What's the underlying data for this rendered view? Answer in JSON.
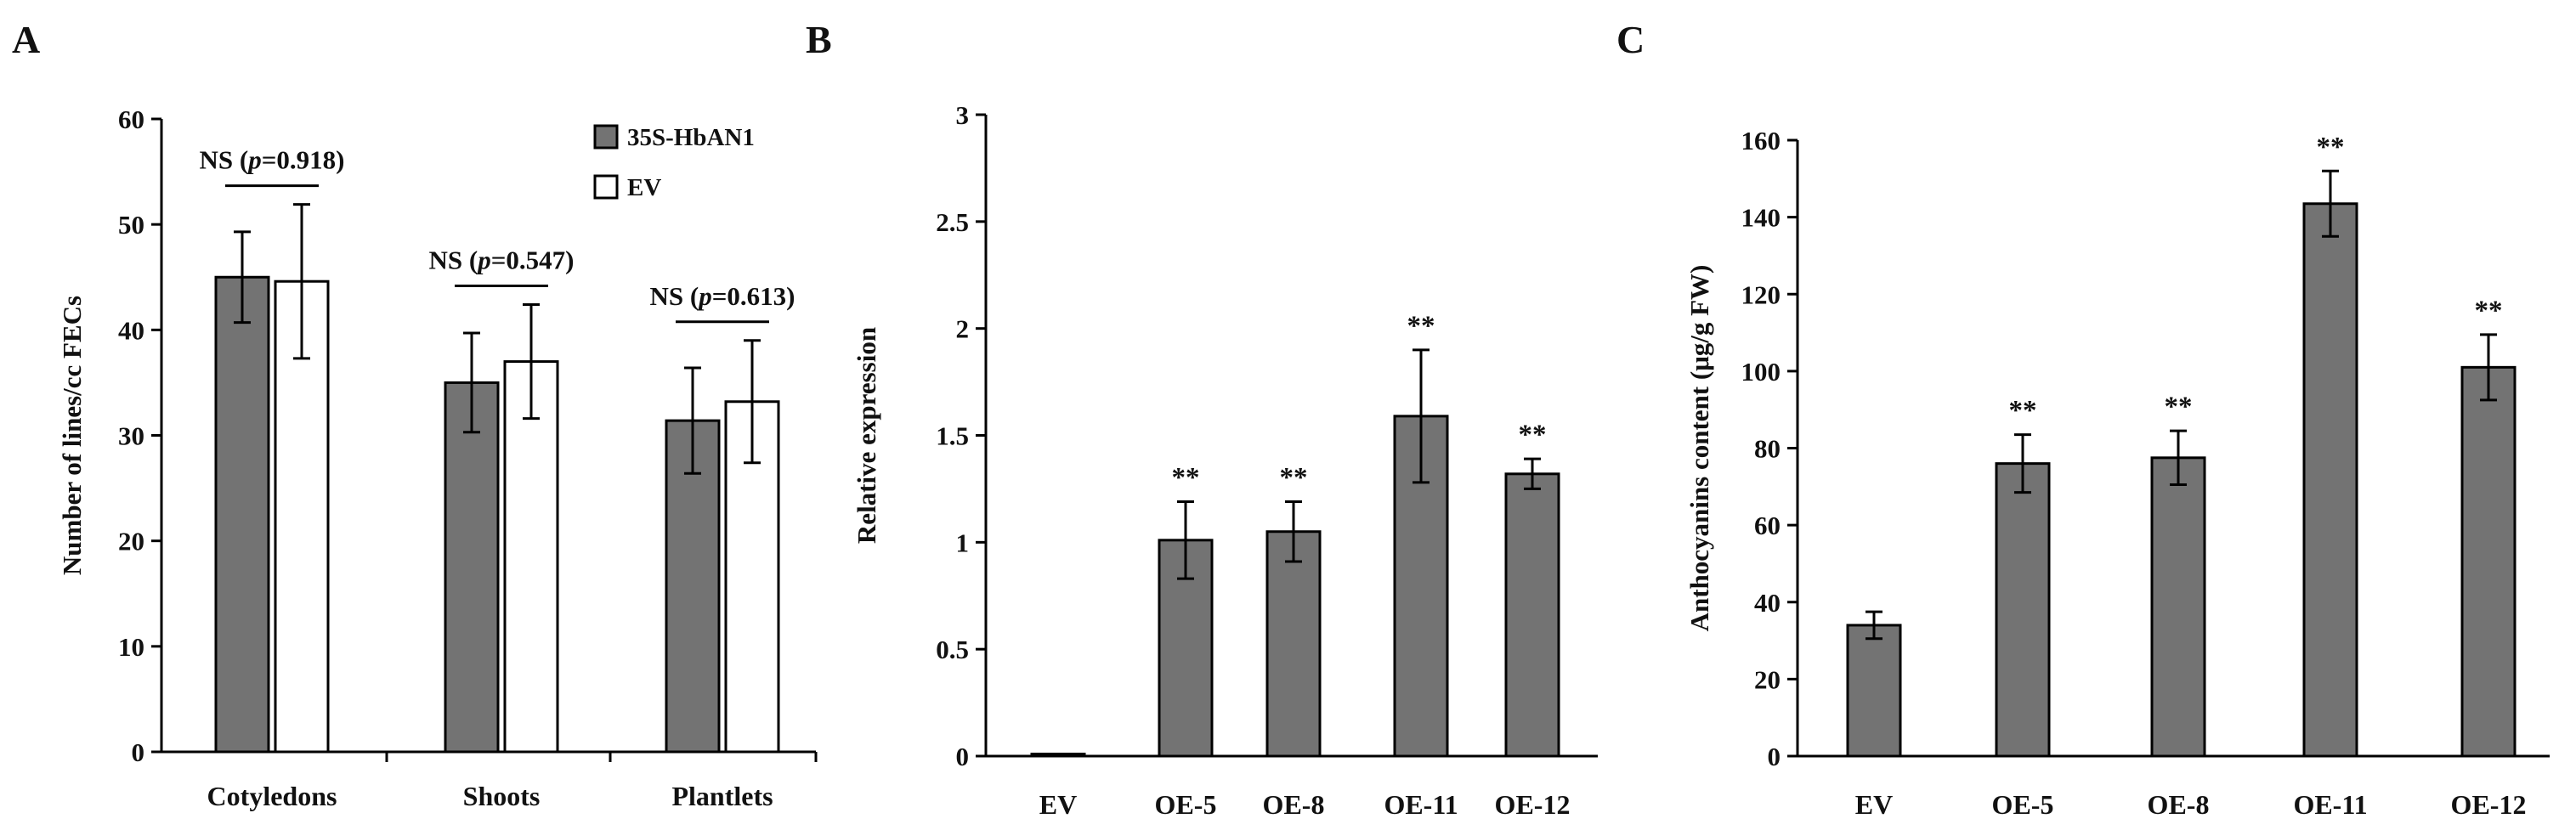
{
  "chart_data": [
    {
      "type": "bar",
      "panel": "A",
      "title": "",
      "ylabel": "Number of lines/cc FECs",
      "ylim": [
        0,
        60
      ],
      "yticks": [
        0,
        10,
        20,
        30,
        40,
        50,
        60
      ],
      "categories": [
        "Cotyledons",
        "Shoots",
        "Plantlets"
      ],
      "series": [
        {
          "name": "35S-HbAN1",
          "color": "#737373",
          "values": [
            45.0,
            35.0,
            31.4
          ],
          "errors": [
            4.3,
            4.7,
            5.0
          ]
        },
        {
          "name": "EV",
          "color": "#ffffff",
          "values": [
            44.6,
            37.0,
            33.2
          ],
          "errors": [
            7.3,
            5.4,
            5.8
          ]
        }
      ],
      "annotations": [
        {
          "prefix": "NS (",
          "p": "p",
          "suffix": "=0.918)",
          "category": 0
        },
        {
          "prefix": "NS (",
          "p": "p",
          "suffix": "=0.547)",
          "category": 1
        },
        {
          "prefix": "NS (",
          "p": "p",
          "suffix": "=0.613)",
          "category": 2
        }
      ],
      "legend": "top-right"
    },
    {
      "type": "bar",
      "panel": "B",
      "title": "",
      "ylabel": "Relative expression",
      "ylim": [
        0,
        3
      ],
      "yticks": [
        0,
        0.5,
        1,
        1.5,
        2,
        2.5,
        3
      ],
      "categories": [
        "EV",
        "OE-5",
        "OE-8",
        "OE-11",
        "OE-12"
      ],
      "series": [
        {
          "name": "Relative expression",
          "color": "#737373",
          "values": [
            0.01,
            1.01,
            1.05,
            1.59,
            1.32
          ],
          "errors": [
            0,
            0.18,
            0.14,
            0.31,
            0.07
          ]
        }
      ],
      "significance": [
        "",
        "**",
        "**",
        "**",
        "**"
      ]
    },
    {
      "type": "bar",
      "panel": "C",
      "title": "",
      "ylabel": "Anthocyanins content (μg/g FW)",
      "ylim": [
        0,
        160
      ],
      "yticks": [
        0,
        20,
        40,
        60,
        80,
        100,
        120,
        140,
        160
      ],
      "categories": [
        "EV",
        "OE-5",
        "OE-8",
        "OE-11",
        "OE-12"
      ],
      "series": [
        {
          "name": "Anthocyanins content",
          "color": "#737373",
          "values": [
            34.0,
            76.0,
            77.5,
            143.5,
            101.0
          ],
          "errors": [
            3.5,
            7.5,
            7.0,
            8.5,
            8.5
          ]
        }
      ],
      "significance": [
        "",
        "**",
        "**",
        "**",
        "**"
      ]
    }
  ]
}
